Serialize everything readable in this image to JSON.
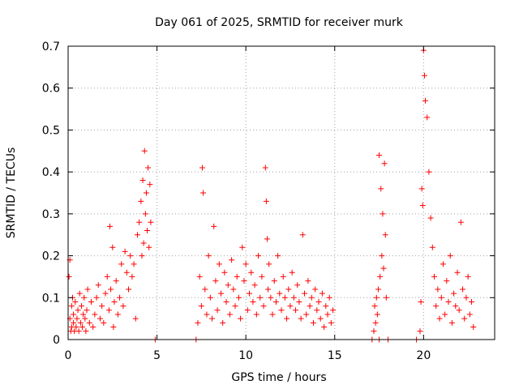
{
  "chart_data": {
    "type": "scatter",
    "title": "Day 061 of 2025, SRMTID for receiver murk",
    "xlabel": "GPS time / hours",
    "ylabel": "SRMTID / TECUs",
    "xlim": [
      0,
      24
    ],
    "ylim": [
      0,
      0.7
    ],
    "xticks": [
      0,
      5,
      10,
      15,
      20
    ],
    "yticks": [
      0,
      0.1,
      0.2,
      0.3,
      0.4,
      0.5,
      0.6,
      0.7
    ],
    "xtick_labels": [
      "0",
      "5",
      "10",
      "15",
      "20"
    ],
    "ytick_labels": [
      "0",
      "0.1",
      "0.2",
      "0.3",
      "0.4",
      "0.5",
      "0.6",
      "0.7"
    ],
    "grid": true,
    "marker": "+",
    "color": "#ff0000",
    "series": [
      {
        "name": "SRMTID",
        "x": [
          0.05,
          0.1,
          0.1,
          0.15,
          0.2,
          0.2,
          0.25,
          0.3,
          0.3,
          0.35,
          0.4,
          0.45,
          0.5,
          0.55,
          0.6,
          0.65,
          0.7,
          0.75,
          0.8,
          0.85,
          0.9,
          0.95,
          1.0,
          1.05,
          1.1,
          1.2,
          1.3,
          1.4,
          1.5,
          1.6,
          1.7,
          1.8,
          1.9,
          2.0,
          2.1,
          2.2,
          2.3,
          2.35,
          2.4,
          2.5,
          2.55,
          2.6,
          2.7,
          2.8,
          2.9,
          3.0,
          3.1,
          3.2,
          3.3,
          3.4,
          3.5,
          3.6,
          3.7,
          3.8,
          3.9,
          4.0,
          4.1,
          4.15,
          4.2,
          4.25,
          4.3,
          4.35,
          4.4,
          4.45,
          4.5,
          4.55,
          4.6,
          4.65,
          7.3,
          7.4,
          7.5,
          7.55,
          7.6,
          7.7,
          7.8,
          7.9,
          8.0,
          8.1,
          8.2,
          8.3,
          8.4,
          8.5,
          8.6,
          8.7,
          8.8,
          8.9,
          9.0,
          9.1,
          9.2,
          9.3,
          9.4,
          9.5,
          9.6,
          9.7,
          9.8,
          9.9,
          10.0,
          10.1,
          10.2,
          10.3,
          10.4,
          10.5,
          10.6,
          10.7,
          10.8,
          10.9,
          11.0,
          11.1,
          11.15,
          11.2,
          11.25,
          11.3,
          11.4,
          11.5,
          11.6,
          11.7,
          11.8,
          11.9,
          12.0,
          12.1,
          12.2,
          12.3,
          12.4,
          12.5,
          12.6,
          12.7,
          12.8,
          12.9,
          13.0,
          13.1,
          13.2,
          13.3,
          13.4,
          13.5,
          13.6,
          13.7,
          13.8,
          13.9,
          14.0,
          14.1,
          14.2,
          14.3,
          14.4,
          14.5,
          14.6,
          14.7,
          14.8,
          14.9,
          17.2,
          17.25,
          17.3,
          17.35,
          17.4,
          17.45,
          17.5,
          17.55,
          17.6,
          17.65,
          17.7,
          17.75,
          17.8,
          17.85,
          17.9,
          19.8,
          19.85,
          19.9,
          19.95,
          20.0,
          20.05,
          20.1,
          20.2,
          20.3,
          20.4,
          20.5,
          20.6,
          20.7,
          20.8,
          20.9,
          21.0,
          21.1,
          21.2,
          21.3,
          21.4,
          21.5,
          21.6,
          21.7,
          21.8,
          21.9,
          22.0,
          22.1,
          22.2,
          22.3,
          22.4,
          22.5,
          22.6,
          22.7,
          22.8,
          4.9,
          7.2,
          17.1,
          17.5,
          18.0,
          19.6
        ],
        "y": [
          0.15,
          0.05,
          0.19,
          0.02,
          0.08,
          0.03,
          0.1,
          0.04,
          0.06,
          0.02,
          0.09,
          0.03,
          0.05,
          0.07,
          0.02,
          0.11,
          0.04,
          0.08,
          0.03,
          0.06,
          0.1,
          0.05,
          0.02,
          0.07,
          0.12,
          0.04,
          0.09,
          0.03,
          0.06,
          0.1,
          0.13,
          0.05,
          0.08,
          0.04,
          0.11,
          0.15,
          0.07,
          0.27,
          0.12,
          0.22,
          0.03,
          0.09,
          0.14,
          0.06,
          0.1,
          0.18,
          0.08,
          0.21,
          0.16,
          0.12,
          0.2,
          0.15,
          0.18,
          0.05,
          0.25,
          0.28,
          0.33,
          0.2,
          0.38,
          0.23,
          0.45,
          0.3,
          0.35,
          0.26,
          0.41,
          0.22,
          0.37,
          0.28,
          0.04,
          0.15,
          0.08,
          0.41,
          0.35,
          0.12,
          0.06,
          0.2,
          0.1,
          0.05,
          0.27,
          0.14,
          0.07,
          0.18,
          0.11,
          0.04,
          0.16,
          0.09,
          0.13,
          0.06,
          0.19,
          0.12,
          0.08,
          0.15,
          0.1,
          0.05,
          0.22,
          0.14,
          0.18,
          0.07,
          0.11,
          0.16,
          0.09,
          0.13,
          0.06,
          0.2,
          0.1,
          0.15,
          0.08,
          0.41,
          0.33,
          0.24,
          0.12,
          0.18,
          0.1,
          0.06,
          0.14,
          0.09,
          0.2,
          0.11,
          0.07,
          0.15,
          0.1,
          0.05,
          0.12,
          0.08,
          0.16,
          0.1,
          0.07,
          0.13,
          0.09,
          0.05,
          0.25,
          0.11,
          0.06,
          0.14,
          0.08,
          0.1,
          0.04,
          0.12,
          0.07,
          0.09,
          0.05,
          0.11,
          0.03,
          0.08,
          0.06,
          0.1,
          0.04,
          0.07,
          0.02,
          0.08,
          0.04,
          0.1,
          0.06,
          0.12,
          0.44,
          0.15,
          0.36,
          0.2,
          0.3,
          0.17,
          0.42,
          0.25,
          0.1,
          0.02,
          0.09,
          0.36,
          0.32,
          0.69,
          0.63,
          0.57,
          0.53,
          0.4,
          0.29,
          0.22,
          0.15,
          0.08,
          0.12,
          0.05,
          0.1,
          0.18,
          0.06,
          0.14,
          0.09,
          0.2,
          0.04,
          0.11,
          0.08,
          0.16,
          0.07,
          0.28,
          0.12,
          0.05,
          0.1,
          0.15,
          0.06,
          0.09,
          0.03,
          0.0,
          0.0,
          0.0,
          0.0,
          0.0,
          0.0
        ]
      }
    ]
  }
}
